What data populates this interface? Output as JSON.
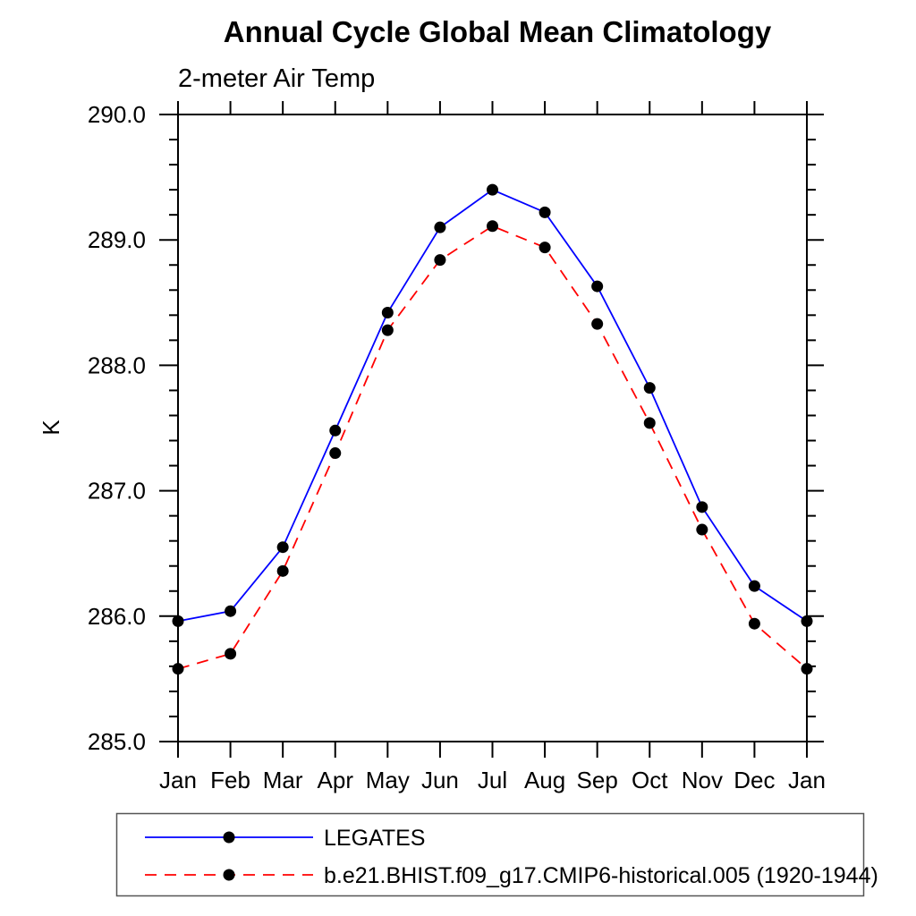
{
  "chart_data": {
    "type": "line",
    "title": "Annual Cycle Global Mean Climatology",
    "subtitle": "2-meter Air Temp",
    "ylabel": "K",
    "x_tick_labels": [
      "Jan",
      "Feb",
      "Mar",
      "Apr",
      "May",
      "Jun",
      "Jul",
      "Aug",
      "Sep",
      "Oct",
      "Nov",
      "Dec",
      "Jan"
    ],
    "ylim": [
      285.0,
      290.0
    ],
    "y_major_step": 1.0,
    "y_minor_step": 0.2,
    "y_tick_labels": [
      "285.0",
      "286.0",
      "287.0",
      "288.0",
      "289.0",
      "290.0"
    ],
    "grid": false,
    "legend_position": "below-plot-left",
    "marker_color": "#000000",
    "axis_color": "#000000",
    "series": [
      {
        "name": "LEGATES",
        "color": "#0000ff",
        "line_style": "solid",
        "marker": "filled-circle",
        "values": [
          285.96,
          286.04,
          286.55,
          287.48,
          288.42,
          289.1,
          289.4,
          289.22,
          288.63,
          287.82,
          286.87,
          286.24,
          285.96
        ]
      },
      {
        "name": "b.e21.BHIST.f09_g17.CMIP6-historical.005 (1920-1944)",
        "color": "#ff0000",
        "line_style": "dashed",
        "marker": "filled-circle",
        "values": [
          285.58,
          285.7,
          286.36,
          287.3,
          288.28,
          288.84,
          289.11,
          288.94,
          288.33,
          287.54,
          286.69,
          285.94,
          285.58
        ]
      }
    ]
  }
}
